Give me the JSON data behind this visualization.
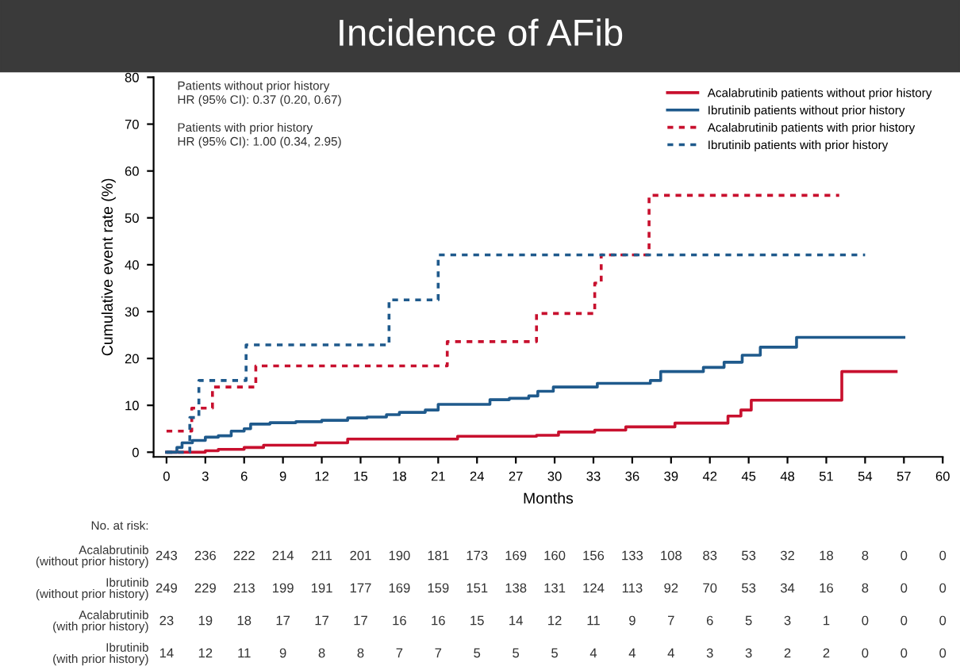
{
  "chart_data": {
    "type": "step",
    "title": "Incidence of AFib",
    "xlabel": "Months",
    "ylabel": "Cumulative event rate (%)",
    "xlim": [
      -1,
      60
    ],
    "xticks": [
      0,
      3,
      6,
      9,
      12,
      15,
      18,
      21,
      24,
      27,
      30,
      33,
      36,
      39,
      42,
      45,
      48,
      51,
      54,
      57,
      60
    ],
    "ylim": [
      -1,
      80
    ],
    "yticks": [
      0,
      10,
      20,
      30,
      40,
      50,
      60,
      70,
      80
    ],
    "grid": false,
    "legend": "top right",
    "series": [
      {
        "name": "Acalabrutinib patients without prior history",
        "color": "#c8102e",
        "line_style": "solid",
        "x": [
          0,
          2.5,
          3,
          4,
          6,
          7.5,
          11.5,
          14,
          22.5,
          28.6,
          30.3,
          33.1,
          35.5,
          39.3,
          43.4,
          44.4,
          45.2,
          52.2,
          56.4
        ],
        "values": [
          0,
          0,
          0.3,
          0.6,
          1,
          1.5,
          2,
          2.8,
          3.4,
          3.6,
          4.3,
          4.7,
          5.4,
          6.2,
          7.7,
          9.0,
          11.1,
          17.2,
          17.2
        ]
      },
      {
        "name": "Ibrutinib patients without prior history",
        "color": "#1f5a8c",
        "line_style": "solid",
        "x": [
          0,
          0.8,
          1.2,
          2,
          3,
          4,
          5,
          6,
          6.5,
          8,
          10,
          12,
          14,
          15.5,
          17,
          18,
          20,
          21,
          25,
          26.5,
          28,
          28.7,
          29.9,
          33.3,
          37.4,
          38.2,
          41.5,
          43.1,
          44.5,
          45.9,
          48.7,
          57
        ],
        "values": [
          0,
          1,
          2,
          2.5,
          3.2,
          3.5,
          4.5,
          5,
          6,
          6.3,
          6.5,
          6.8,
          7.3,
          7.5,
          8,
          8.5,
          9,
          10.2,
          11.2,
          11.5,
          12,
          13,
          13.9,
          14.7,
          15.3,
          17.2,
          18.1,
          19.2,
          20.7,
          22.4,
          24.5,
          24.5
        ]
      },
      {
        "name": "Acalabrutinib patients with prior history",
        "color": "#c8102e",
        "line_style": "dashed",
        "x": [
          0,
          1.95,
          3.55,
          6.9,
          21.7,
          28.6,
          33.1,
          33.6,
          37.3,
          52
        ],
        "values": [
          4.5,
          9.4,
          13.9,
          18.4,
          23.6,
          29.6,
          36.1,
          42.1,
          54.8,
          54.8
        ]
      },
      {
        "name": "Ibrutinib patients with prior history",
        "color": "#1f5a8c",
        "line_style": "dashed",
        "x": [
          0,
          1.8,
          2.5,
          6.15,
          17.2,
          21,
          54
        ],
        "values": [
          0,
          7.4,
          15.3,
          22.9,
          32.5,
          42.1,
          42.1
        ]
      }
    ],
    "annotations": [
      "Patients without prior history\nHR (95% CI): 0.37 (0.20, 0.67)",
      "Patients with prior history\nHR (95% CI): 1.00 (0.34, 2.95)",
      "No. at risk:",
      "Acalabrutinib\n(without prior history)",
      "243",
      "236",
      "222",
      "214",
      "211",
      "201",
      "190",
      "181",
      "173",
      "169",
      "160",
      "156",
      "133",
      "108",
      "83",
      "53",
      "32",
      "18",
      "8",
      "0",
      "0",
      "Ibrutinib\n(without prior history)",
      "249",
      "229",
      "213",
      "199",
      "191",
      "177",
      "169",
      "159",
      "151",
      "138",
      "131",
      "124",
      "113",
      "92",
      "70",
      "53",
      "34",
      "16",
      "8",
      "0",
      "0",
      "Acalabrutinib\n(with prior history)",
      "23",
      "19",
      "18",
      "17",
      "17",
      "17",
      "16",
      "16",
      "15",
      "14",
      "12",
      "11",
      "9",
      "7",
      "6",
      "5",
      "3",
      "1",
      "0",
      "0",
      "0",
      "Ibrutinib\n(with prior history)",
      "14",
      "12",
      "11",
      "9",
      "8",
      "8",
      "7",
      "7",
      "5",
      "5",
      "5",
      "4",
      "4",
      "4",
      "3",
      "3",
      "2",
      "2",
      "0",
      "0",
      "0"
    ]
  }
}
